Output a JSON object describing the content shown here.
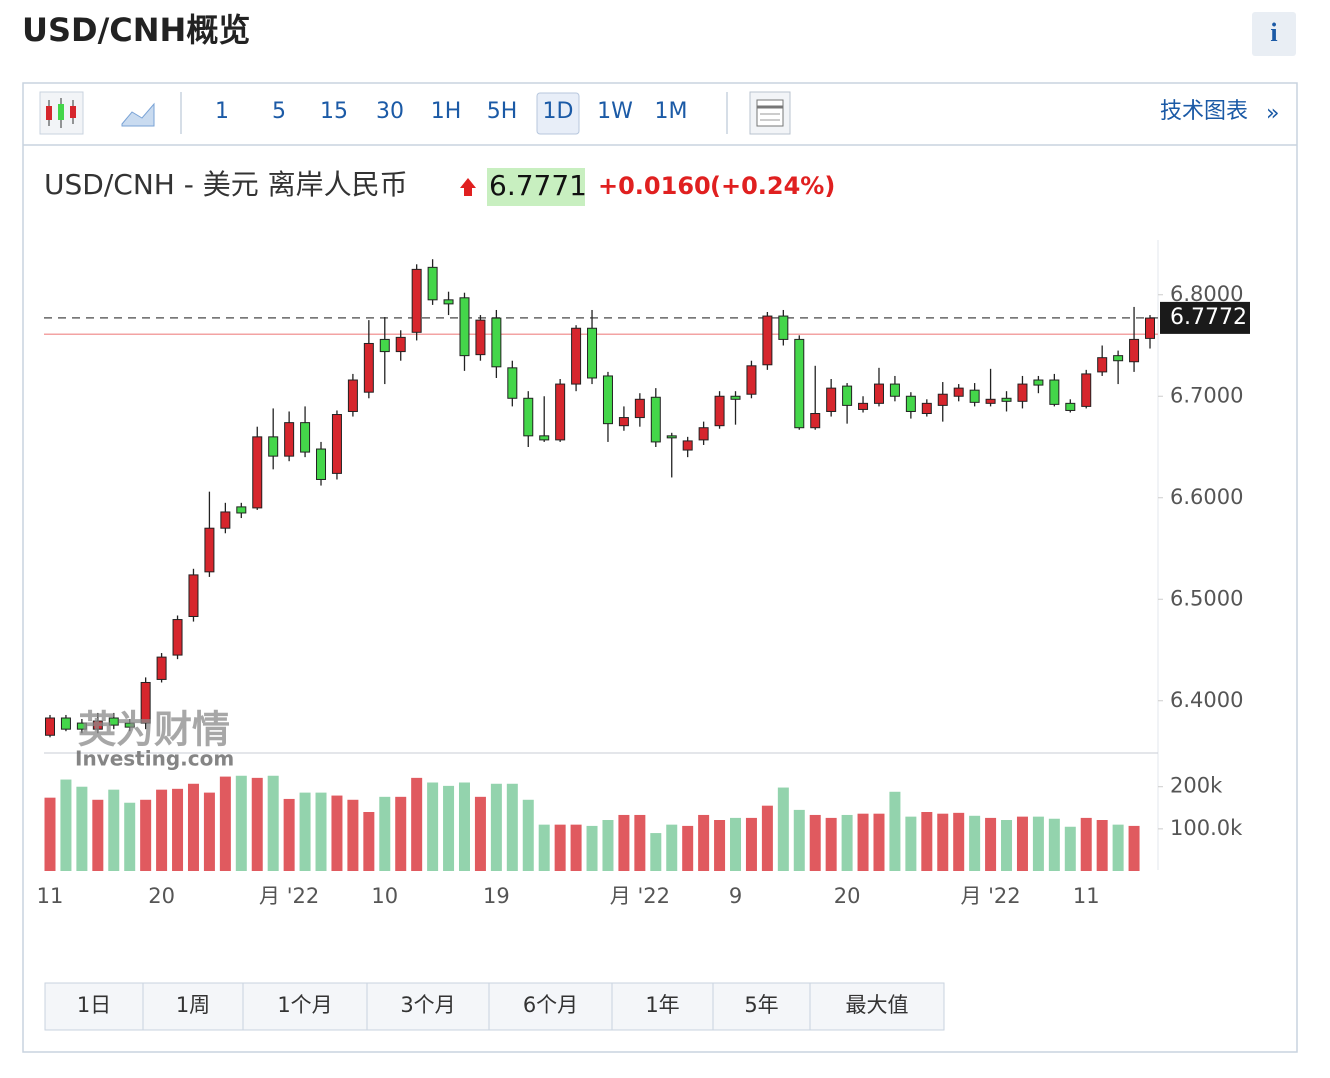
{
  "header": {
    "title": "USD/CNH概览",
    "info": "i"
  },
  "toolbar": {
    "intervals": [
      "1",
      "5",
      "15",
      "30",
      "1H",
      "5H",
      "1D",
      "1W",
      "1M"
    ],
    "active_index": 6,
    "technical_chart": "技术图表",
    "more": "»"
  },
  "quote": {
    "name": "USD/CNH - 美元 离岸人民币",
    "price": "6.7771",
    "change": "+0.0160",
    "change_percent": "(+0.24%)"
  },
  "watermark": {
    "cn": "英为财情",
    "brand": "Investing.com"
  },
  "ranges": [
    "1日",
    "1周",
    "1个月",
    "3个月",
    "6个月",
    "1年",
    "5年",
    "最大值"
  ],
  "chart_data": {
    "type": "candlestick",
    "categories": [
      "11",
      null,
      null,
      null,
      null,
      null,
      null,
      "20",
      null,
      null,
      null,
      null,
      null,
      null,
      null,
      "月 '22",
      null,
      null,
      null,
      null,
      null,
      "10",
      null,
      null,
      null,
      null,
      null,
      null,
      "19",
      null,
      null,
      null,
      null,
      null,
      null,
      null,
      null,
      "月 '22",
      null,
      null,
      null,
      null,
      null,
      "9",
      null,
      null,
      null,
      null,
      null,
      null,
      "20",
      null,
      null,
      null,
      null,
      null,
      null,
      null,
      null,
      "月 '22",
      null,
      null,
      null,
      null,
      null,
      "11",
      null,
      null,
      null,
      null
    ],
    "open": [
      6.366,
      6.383,
      6.378,
      6.372,
      6.383,
      6.378,
      6.378,
      6.421,
      6.445,
      6.483,
      6.527,
      6.57,
      6.591,
      6.59,
      6.66,
      6.641,
      6.674,
      6.648,
      6.624,
      6.685,
      6.704,
      6.756,
      6.744,
      6.763,
      6.827,
      6.795,
      6.797,
      6.741,
      6.777,
      6.728,
      6.698,
      6.661,
      6.657,
      6.712,
      6.767,
      6.72,
      6.671,
      6.679,
      6.699,
      6.661,
      6.647,
      6.657,
      6.671,
      6.7,
      6.702,
      6.731,
      6.779,
      6.756,
      6.669,
      6.685,
      6.71,
      6.687,
      6.693,
      6.712,
      6.7,
      6.683,
      6.691,
      6.7,
      6.706,
      6.693,
      6.698,
      6.695,
      6.716,
      6.716,
      6.693,
      6.69,
      6.724,
      6.74,
      6.734,
      6.757
    ],
    "high": [
      6.386,
      6.386,
      6.382,
      6.388,
      6.388,
      6.382,
      6.423,
      6.447,
      6.484,
      6.53,
      6.606,
      6.595,
      6.595,
      6.67,
      6.688,
      6.685,
      6.69,
      6.655,
      6.686,
      6.722,
      6.775,
      6.778,
      6.765,
      6.83,
      6.835,
      6.803,
      6.802,
      6.78,
      6.785,
      6.735,
      6.705,
      6.7,
      6.717,
      6.77,
      6.785,
      6.724,
      6.69,
      6.703,
      6.708,
      6.664,
      6.66,
      6.675,
      6.705,
      6.705,
      6.735,
      6.783,
      6.785,
      6.76,
      6.73,
      6.717,
      6.713,
      6.7,
      6.728,
      6.72,
      6.704,
      6.697,
      6.714,
      6.712,
      6.713,
      6.727,
      6.705,
      6.72,
      6.72,
      6.722,
      6.697,
      6.726,
      6.75,
      6.745,
      6.788,
      6.78
    ],
    "low": [
      6.364,
      6.37,
      6.368,
      6.368,
      6.372,
      6.37,
      6.372,
      6.418,
      6.441,
      6.478,
      6.522,
      6.565,
      6.58,
      6.588,
      6.628,
      6.636,
      6.64,
      6.612,
      6.618,
      6.68,
      6.698,
      6.712,
      6.735,
      6.755,
      6.79,
      6.78,
      6.725,
      6.735,
      6.718,
      6.69,
      6.65,
      6.655,
      6.655,
      6.705,
      6.712,
      6.655,
      6.666,
      6.67,
      6.65,
      6.62,
      6.64,
      6.652,
      6.668,
      6.672,
      6.698,
      6.726,
      6.75,
      6.667,
      6.667,
      6.68,
      6.673,
      6.684,
      6.69,
      6.695,
      6.678,
      6.68,
      6.675,
      6.695,
      6.69,
      6.69,
      6.685,
      6.688,
      6.703,
      6.69,
      6.684,
      6.688,
      6.72,
      6.712,
      6.724,
      6.747
    ],
    "close": [
      6.383,
      6.372,
      6.372,
      6.38,
      6.376,
      6.374,
      6.418,
      6.443,
      6.48,
      6.524,
      6.57,
      6.586,
      6.585,
      6.66,
      6.641,
      6.674,
      6.645,
      6.618,
      6.682,
      6.716,
      6.752,
      6.744,
      6.758,
      6.825,
      6.795,
      6.791,
      6.74,
      6.775,
      6.729,
      6.698,
      6.661,
      6.657,
      6.712,
      6.767,
      6.718,
      6.673,
      6.679,
      6.697,
      6.655,
      6.659,
      6.656,
      6.669,
      6.7,
      6.697,
      6.73,
      6.779,
      6.756,
      6.669,
      6.683,
      6.708,
      6.691,
      6.693,
      6.712,
      6.7,
      6.685,
      6.693,
      6.702,
      6.708,
      6.694,
      6.697,
      6.695,
      6.712,
      6.711,
      6.692,
      6.686,
      6.722,
      6.738,
      6.735,
      6.756,
      6.777
    ],
    "up_color": "#d6262d",
    "down_color": "#44d64a",
    "ylim": [
      6.35,
      6.85
    ],
    "yticks": [
      {
        "value": 6.4,
        "label": "6.4000"
      },
      {
        "value": 6.5,
        "label": "6.5000"
      },
      {
        "value": 6.6,
        "label": "6.6000"
      },
      {
        "value": 6.7,
        "label": "6.7000"
      },
      {
        "value": 6.8,
        "label": "6.8000"
      }
    ],
    "last_price": 6.7772,
    "reference_line": 6.7611,
    "grid": false,
    "volume": {
      "values": [
        174000,
        217000,
        200000,
        169000,
        193000,
        162000,
        169000,
        193000,
        195000,
        207000,
        186000,
        224000,
        226000,
        221000,
        226000,
        171000,
        186000,
        186000,
        179000,
        169000,
        140000,
        176000,
        176000,
        221000,
        210000,
        202000,
        210000,
        176000,
        207000,
        207000,
        169000,
        110000,
        110000,
        110000,
        107000,
        121000,
        133000,
        133000,
        90000,
        110000,
        107000,
        133000,
        121000,
        126000,
        126000,
        155000,
        198000,
        145000,
        133000,
        126000,
        133000,
        136000,
        136000,
        188000,
        129000,
        140000,
        136000,
        138000,
        131000,
        126000,
        121000,
        129000,
        129000,
        124000,
        105000,
        126000,
        121000,
        110000,
        107000,
        null
      ],
      "up_color": "#e05a5f",
      "down_color": "#93d3ad",
      "ylim": [
        0,
        280000
      ],
      "yticks": [
        {
          "value": 100000,
          "label": "100.0k"
        },
        {
          "value": 200000,
          "label": "200k"
        }
      ]
    }
  }
}
